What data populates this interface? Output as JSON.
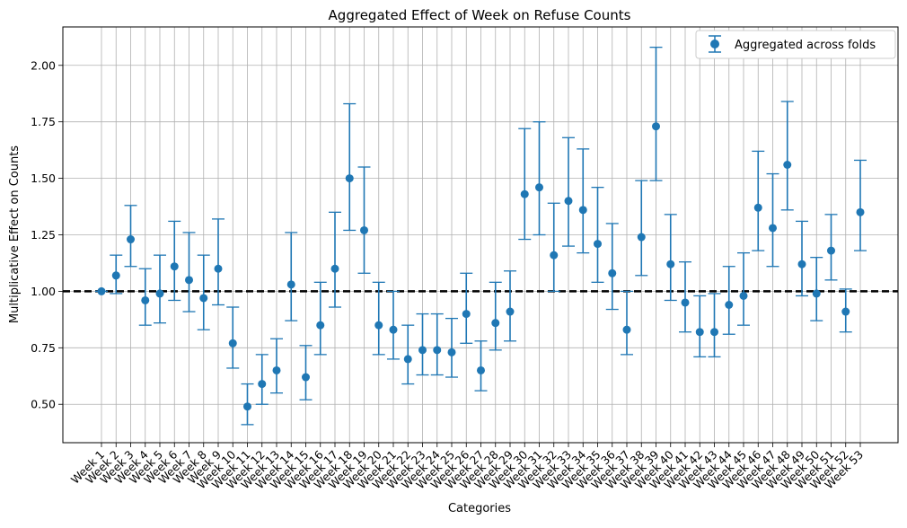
{
  "chart_data": {
    "type": "scatter",
    "title": "Aggregated Effect of Week on Refuse Counts",
    "xlabel": "Categories",
    "ylabel": "Multiplicative Effect on Counts",
    "categories": [
      "Week 1",
      "Week 2",
      "Week 3",
      "Week 4",
      "Week 5",
      "Week 6",
      "Week 7",
      "Week 8",
      "Week 9",
      "Week 10",
      "Week 11",
      "Week 12",
      "Week 13",
      "Week 14",
      "Week 15",
      "Week 16",
      "Week 17",
      "Week 18",
      "Week 19",
      "Week 20",
      "Week 21",
      "Week 22",
      "Week 23",
      "Week 24",
      "Week 25",
      "Week 26",
      "Week 27",
      "Week 28",
      "Week 29",
      "Week 30",
      "Week 31",
      "Week 32",
      "Week 33",
      "Week 34",
      "Week 35",
      "Week 36",
      "Week 37",
      "Week 38",
      "Week 39",
      "Week 40",
      "Week 41",
      "Week 42",
      "Week 43",
      "Week 44",
      "Week 45",
      "Week 46",
      "Week 47",
      "Week 48",
      "Week 49",
      "Week 50",
      "Week 51",
      "Week 52",
      "Week 53"
    ],
    "series": [
      {
        "name": "Aggregated across folds",
        "color": "#1f77b4",
        "values": [
          1.0,
          1.07,
          1.23,
          0.96,
          0.99,
          1.11,
          1.05,
          0.97,
          1.1,
          0.77,
          0.49,
          0.59,
          0.65,
          1.03,
          0.62,
          0.85,
          1.1,
          1.5,
          1.27,
          0.85,
          0.83,
          0.7,
          0.74,
          0.74,
          0.73,
          0.9,
          0.65,
          0.86,
          0.91,
          1.43,
          1.46,
          1.16,
          1.4,
          1.36,
          1.21,
          1.08,
          0.83,
          1.24,
          1.73,
          1.12,
          0.95,
          0.82,
          0.82,
          0.94,
          0.98,
          1.37,
          1.28,
          1.56,
          1.12,
          0.99,
          1.18,
          0.91,
          1.35
        ],
        "lower": [
          1.0,
          0.99,
          1.11,
          0.85,
          0.86,
          0.96,
          0.91,
          0.83,
          0.94,
          0.66,
          0.41,
          0.5,
          0.55,
          0.87,
          0.52,
          0.72,
          0.93,
          1.27,
          1.08,
          0.72,
          0.7,
          0.59,
          0.63,
          0.63,
          0.62,
          0.77,
          0.56,
          0.74,
          0.78,
          1.23,
          1.25,
          1.0,
          1.2,
          1.17,
          1.04,
          0.92,
          0.72,
          1.07,
          1.49,
          0.96,
          0.82,
          0.71,
          0.71,
          0.81,
          0.85,
          1.18,
          1.11,
          1.36,
          0.98,
          0.87,
          1.05,
          0.82,
          1.18
        ],
        "upper": [
          1.0,
          1.16,
          1.38,
          1.1,
          1.16,
          1.31,
          1.26,
          1.16,
          1.32,
          0.93,
          0.59,
          0.72,
          0.79,
          1.26,
          0.76,
          1.04,
          1.35,
          1.83,
          1.55,
          1.04,
          1.0,
          0.85,
          0.9,
          0.9,
          0.88,
          1.08,
          0.78,
          1.04,
          1.09,
          1.72,
          1.75,
          1.39,
          1.68,
          1.63,
          1.46,
          1.3,
          1.0,
          1.49,
          2.08,
          1.34,
          1.13,
          0.98,
          0.99,
          1.11,
          1.17,
          1.62,
          1.52,
          1.84,
          1.31,
          1.15,
          1.34,
          1.01,
          1.58
        ]
      }
    ],
    "reference_line": {
      "y": 1.0,
      "style": "dashed",
      "color": "#000000"
    },
    "yticks": [
      "0.50",
      "0.75",
      "1.00",
      "1.25",
      "1.50",
      "1.75",
      "2.00"
    ],
    "ylim": [
      0.33,
      2.17
    ],
    "grid": true,
    "legend": {
      "label": "Aggregated across folds",
      "position": "top-right"
    }
  }
}
